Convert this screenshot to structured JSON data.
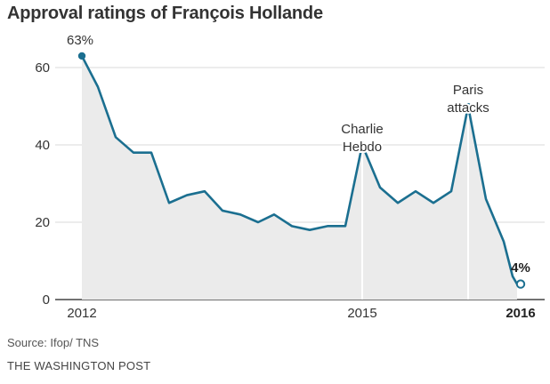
{
  "title": "Approval ratings of François Hollande",
  "source": "Source: Ifop/ TNS",
  "credit": "THE WASHINGTON POST",
  "colors": {
    "line": "#1b6f90",
    "area": "#ebebeb",
    "grid": "#d8d8d8",
    "axis": "#555555"
  },
  "chart_data": {
    "type": "line",
    "title": "Approval ratings of François Hollande",
    "xlabel": "",
    "ylabel": "",
    "ylim": [
      0,
      65
    ],
    "yticks": [
      0,
      20,
      40,
      60
    ],
    "grid": true,
    "x_tick_labels": [
      {
        "x": 2012.0,
        "label": "2012",
        "bold": false
      },
      {
        "x": 2015.0,
        "label": "2015",
        "bold": false
      },
      {
        "x": 2016.0,
        "label": "2016",
        "bold": true
      }
    ],
    "series": [
      {
        "x": [
          2012.0,
          2012.1,
          2012.2,
          2012.3,
          2012.4,
          2012.5,
          2012.6,
          2012.7,
          2012.8,
          2012.9,
          2013.0,
          2013.1,
          2013.2,
          2013.3,
          2013.4,
          2013.5,
          2013.6,
          2013.7,
          2013.8,
          2013.9,
          2014.0,
          2014.1,
          2014.2,
          2014.3,
          2014.4,
          2014.5,
          2014.6,
          2014.7,
          2014.8,
          2014.9,
          2014.96
        ],
        "values": [
          63,
          55,
          42,
          38,
          38,
          25,
          27,
          28,
          23,
          22,
          20,
          22,
          19,
          18,
          19,
          19,
          40,
          29,
          25,
          28,
          25,
          28,
          50,
          26,
          15,
          6,
          4,
          4,
          4,
          4,
          4
        ]
      }
    ],
    "data_labels": [
      {
        "x": 2012.0,
        "y": 63,
        "text": "63%"
      },
      {
        "x": 2016.0,
        "y": 4,
        "text": "4%"
      }
    ],
    "annotations": [
      {
        "x": 2015.0,
        "y": 40,
        "lines": [
          "Charlie",
          "Hebdo"
        ]
      },
      {
        "x": 2015.6,
        "y": 50,
        "lines": [
          "Paris",
          "attacks"
        ]
      }
    ]
  }
}
